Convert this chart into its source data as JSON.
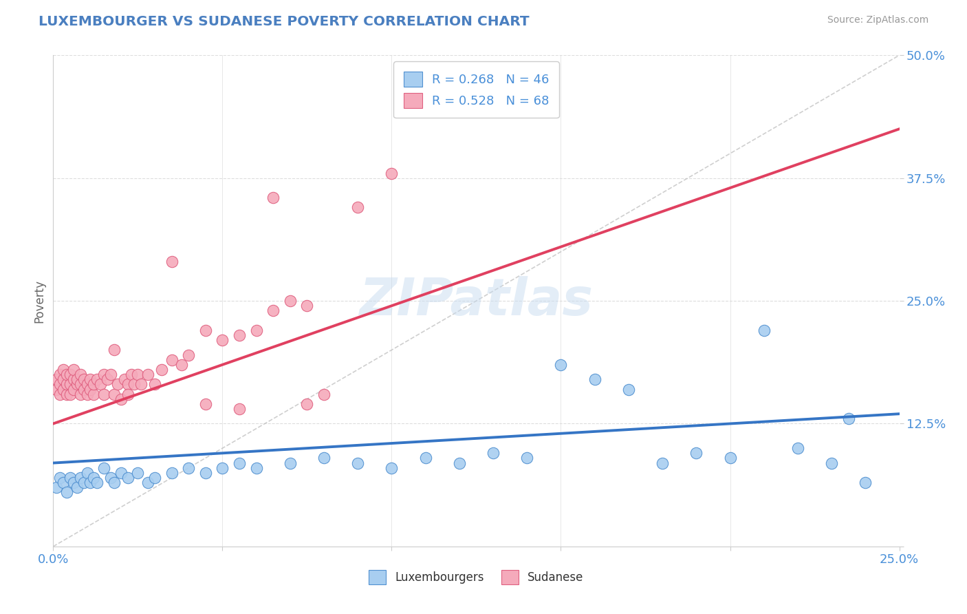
{
  "title": "LUXEMBOURGER VS SUDANESE POVERTY CORRELATION CHART",
  "source": "Source: ZipAtlas.com",
  "ylabel": "Poverty",
  "xlim": [
    0.0,
    0.25
  ],
  "ylim": [
    0.0,
    0.5
  ],
  "xticks": [
    0.0,
    0.05,
    0.1,
    0.15,
    0.2,
    0.25
  ],
  "xticklabels": [
    "0.0%",
    "",
    "",
    "",
    "",
    "25.0%"
  ],
  "yticks": [
    0.0,
    0.125,
    0.25,
    0.375,
    0.5
  ],
  "yticklabels": [
    "",
    "12.5%",
    "25.0%",
    "37.5%",
    "50.0%"
  ],
  "blue_fill": "#A8CEF0",
  "pink_fill": "#F5AABB",
  "blue_edge": "#5090D0",
  "pink_edge": "#E06080",
  "blue_line": "#3575C5",
  "pink_line": "#E04060",
  "ref_line_color": "#BBBBBB",
  "R_blue": 0.268,
  "N_blue": 46,
  "R_pink": 0.528,
  "N_pink": 68,
  "legend_label_blue": "Luxembourgers",
  "legend_label_pink": "Sudanese",
  "watermark": "ZIPatlas",
  "title_color": "#4A7FC0",
  "axis_label_color": "#4A90D9",
  "tick_color": "#4A90D9",
  "grid_color": "#DDDDDD",
  "blue_line_y0": 0.085,
  "blue_line_y1": 0.135,
  "pink_line_y0": 0.125,
  "pink_line_y1": 0.425,
  "blue_scatter_x": [
    0.001,
    0.002,
    0.003,
    0.004,
    0.005,
    0.006,
    0.007,
    0.008,
    0.009,
    0.01,
    0.011,
    0.012,
    0.013,
    0.015,
    0.017,
    0.018,
    0.02,
    0.022,
    0.025,
    0.028,
    0.03,
    0.035,
    0.04,
    0.045,
    0.05,
    0.055,
    0.06,
    0.07,
    0.08,
    0.09,
    0.1,
    0.11,
    0.12,
    0.13,
    0.14,
    0.15,
    0.16,
    0.17,
    0.18,
    0.19,
    0.2,
    0.21,
    0.22,
    0.23,
    0.235,
    0.24
  ],
  "blue_scatter_y": [
    0.06,
    0.07,
    0.065,
    0.055,
    0.07,
    0.065,
    0.06,
    0.07,
    0.065,
    0.075,
    0.065,
    0.07,
    0.065,
    0.08,
    0.07,
    0.065,
    0.075,
    0.07,
    0.075,
    0.065,
    0.07,
    0.075,
    0.08,
    0.075,
    0.08,
    0.085,
    0.08,
    0.085,
    0.09,
    0.085,
    0.08,
    0.09,
    0.085,
    0.095,
    0.09,
    0.185,
    0.17,
    0.16,
    0.085,
    0.095,
    0.09,
    0.22,
    0.1,
    0.085,
    0.13,
    0.065
  ],
  "pink_scatter_x": [
    0.001,
    0.001,
    0.002,
    0.002,
    0.002,
    0.003,
    0.003,
    0.003,
    0.004,
    0.004,
    0.004,
    0.005,
    0.005,
    0.005,
    0.006,
    0.006,
    0.006,
    0.007,
    0.007,
    0.008,
    0.008,
    0.008,
    0.009,
    0.009,
    0.01,
    0.01,
    0.011,
    0.011,
    0.012,
    0.012,
    0.013,
    0.014,
    0.015,
    0.015,
    0.016,
    0.017,
    0.018,
    0.019,
    0.02,
    0.021,
    0.022,
    0.023,
    0.024,
    0.025,
    0.026,
    0.028,
    0.03,
    0.032,
    0.035,
    0.038,
    0.04,
    0.045,
    0.05,
    0.055,
    0.06,
    0.065,
    0.07,
    0.075,
    0.08,
    0.09,
    0.1,
    0.035,
    0.045,
    0.055,
    0.018,
    0.022,
    0.065,
    0.075
  ],
  "pink_scatter_y": [
    0.16,
    0.17,
    0.155,
    0.165,
    0.175,
    0.16,
    0.17,
    0.18,
    0.155,
    0.165,
    0.175,
    0.155,
    0.165,
    0.175,
    0.16,
    0.17,
    0.18,
    0.165,
    0.17,
    0.155,
    0.165,
    0.175,
    0.16,
    0.17,
    0.155,
    0.165,
    0.16,
    0.17,
    0.155,
    0.165,
    0.17,
    0.165,
    0.155,
    0.175,
    0.17,
    0.175,
    0.155,
    0.165,
    0.15,
    0.17,
    0.165,
    0.175,
    0.165,
    0.175,
    0.165,
    0.175,
    0.165,
    0.18,
    0.19,
    0.185,
    0.195,
    0.22,
    0.21,
    0.215,
    0.22,
    0.24,
    0.25,
    0.245,
    0.155,
    0.345,
    0.38,
    0.29,
    0.145,
    0.14,
    0.2,
    0.155,
    0.355,
    0.145
  ]
}
